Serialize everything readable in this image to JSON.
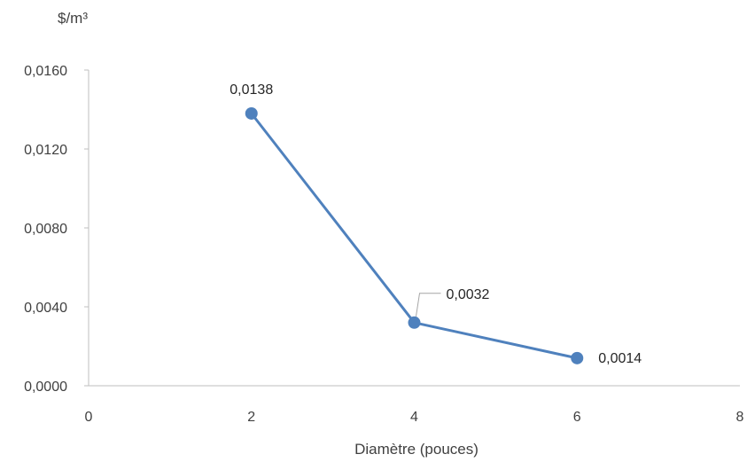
{
  "chart_data": {
    "type": "line",
    "title": "",
    "xlabel": "Diamètre (pouces)",
    "ylabel": "$/m³",
    "xlim": [
      0,
      8
    ],
    "ylim": [
      0,
      0.016
    ],
    "x_ticks": [
      0,
      2,
      4,
      6,
      8
    ],
    "y_ticks": [
      0,
      0.004,
      0.008,
      0.012,
      0.016
    ],
    "x_tick_labels": [
      "0",
      "2",
      "4",
      "6",
      "8"
    ],
    "y_tick_labels": [
      "0,0000",
      "0,0040",
      "0,0080",
      "0,0120",
      "0,0160"
    ],
    "series": [
      {
        "x": [
          2,
          4,
          6
        ],
        "y": [
          0.0138,
          0.0032,
          0.0014
        ],
        "labels": [
          "0,0138",
          "0,0032",
          "0,0014"
        ],
        "color": "#4F81BD"
      }
    ],
    "grid": false,
    "legend": "none"
  }
}
